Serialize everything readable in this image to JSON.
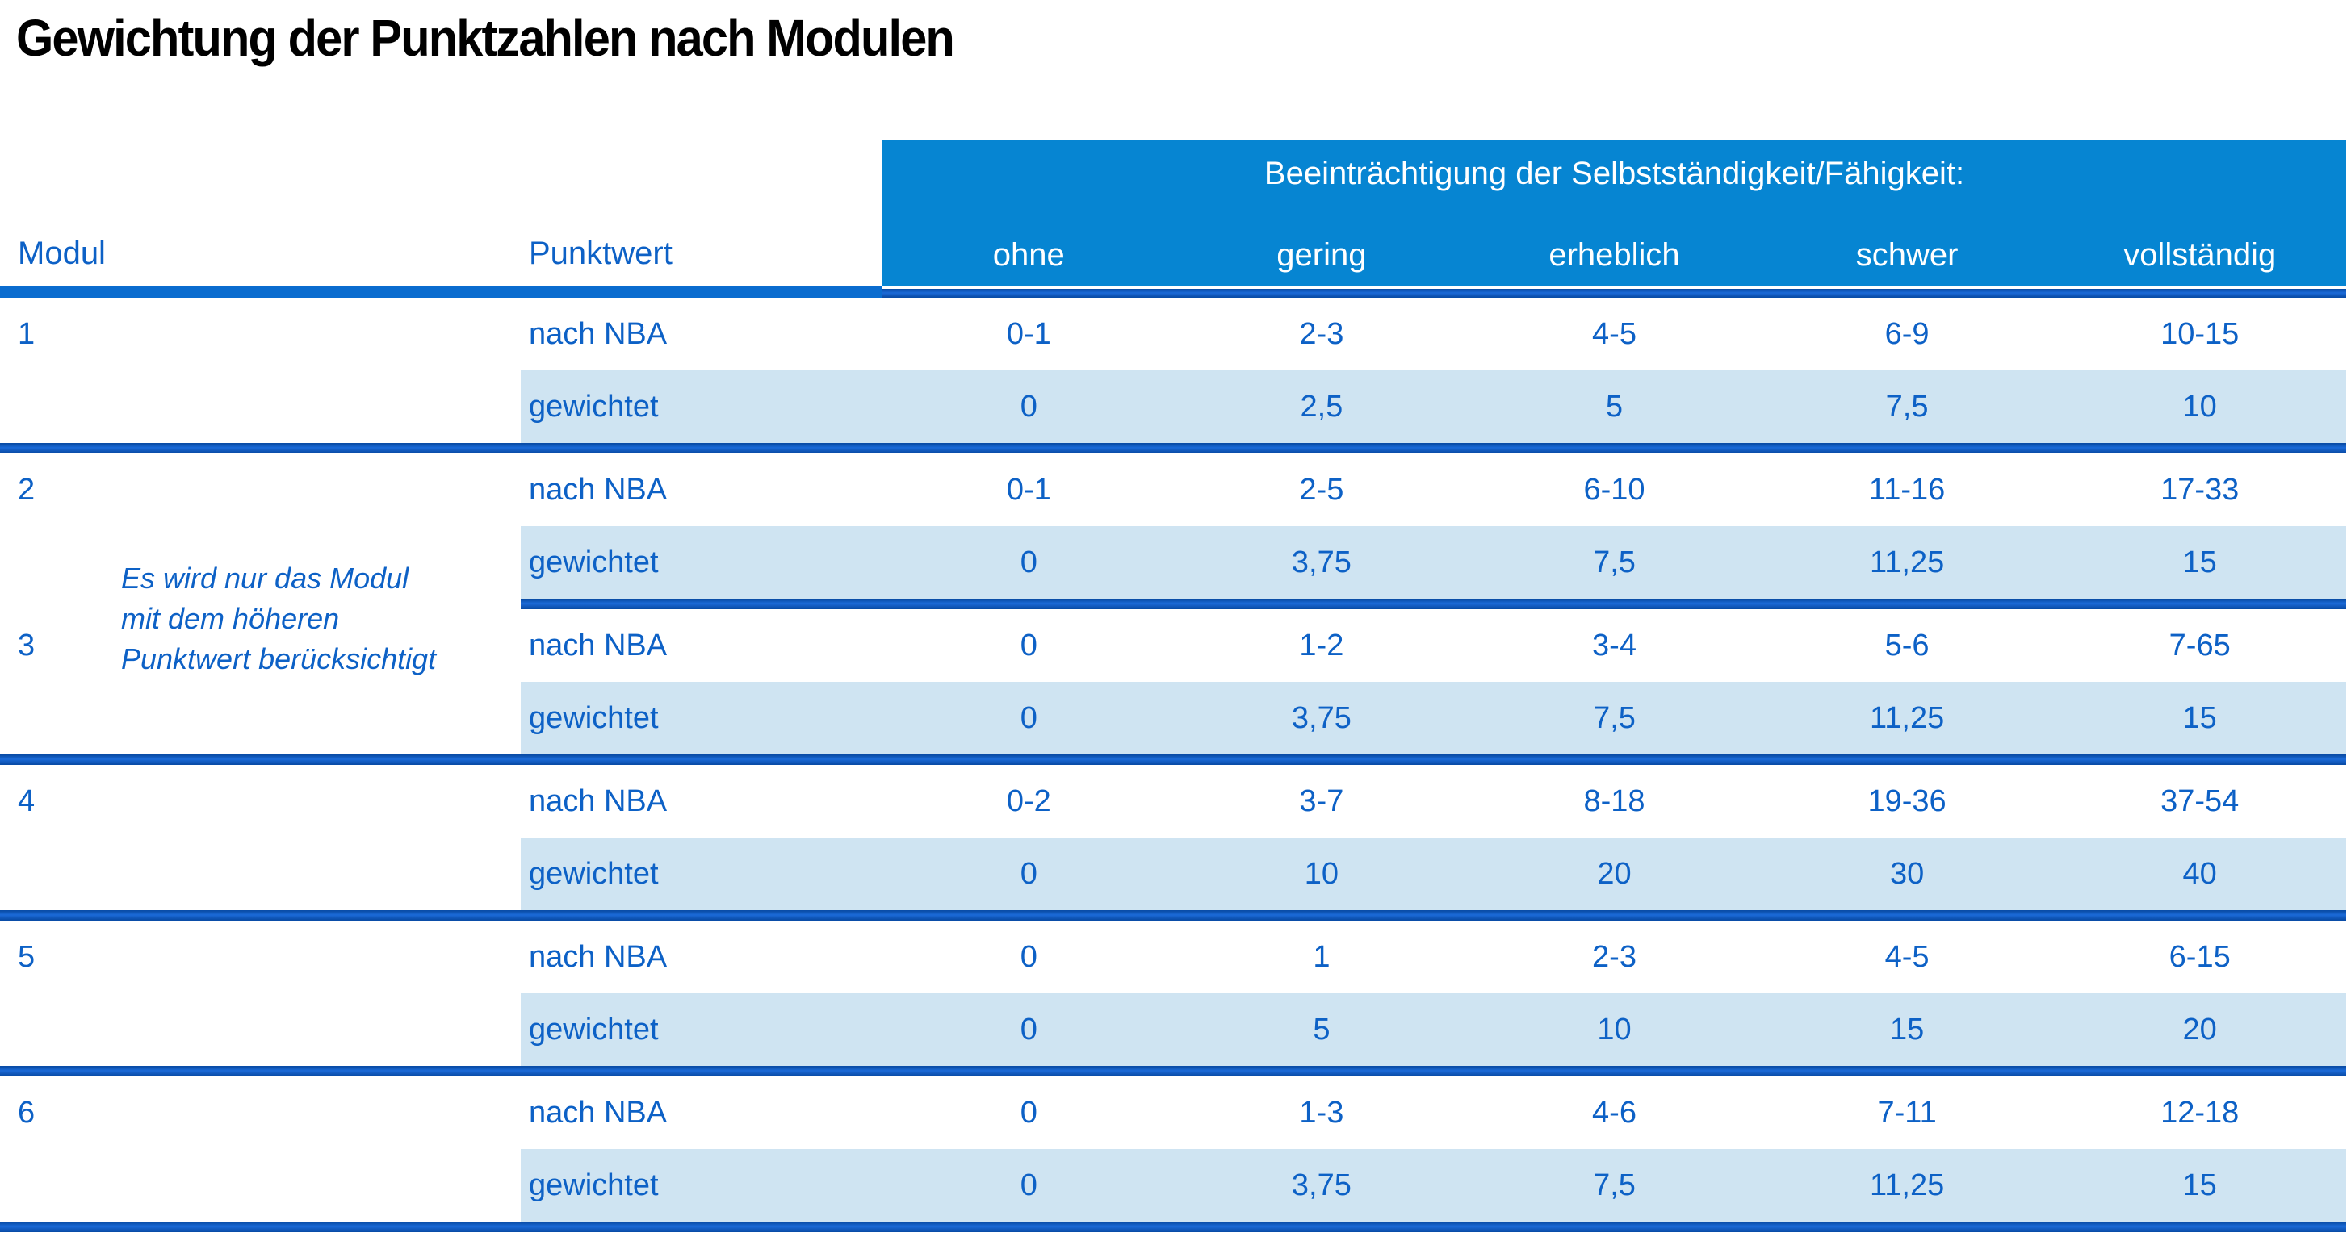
{
  "page": {
    "title": "Gewichtung der Punktzahlen nach Modulen"
  },
  "colors": {
    "header_azure": "#0685d2",
    "text_blue": "#0d61c6",
    "row_light_blue": "#cfe4f2",
    "separator_blue": "#1b6ad8",
    "separator_dark": "#0a4da8"
  },
  "table": {
    "modul_header": "Modul",
    "punktwert_header": "Punktwert",
    "group_header": "Beeinträchtigung der Selbstständigkeit/Fähigkeit:",
    "severity_labels": [
      "ohne",
      "gering",
      "erheblich",
      "schwer",
      "vollständig"
    ],
    "row_labels": {
      "nba": "nach NBA",
      "gewichtet": "gewichtet"
    },
    "note": {
      "line1": "Es wird nur das Modul",
      "line2": "mit dem höheren",
      "line3": "Punktwert berücksichtigt"
    },
    "modules": [
      {
        "number": "1",
        "nba": [
          "0-1",
          "2-3",
          "4-5",
          "6-9",
          "10-15"
        ],
        "gewichtet": [
          "0",
          "2,5",
          "5",
          "7,5",
          "10"
        ]
      },
      {
        "number": "2",
        "nba": [
          "0-1",
          "2-5",
          "6-10",
          "11-16",
          "17-33"
        ],
        "gewichtet": [
          "0",
          "3,75",
          "7,5",
          "11,25",
          "15"
        ]
      },
      {
        "number": "3",
        "nba": [
          "0",
          "1-2",
          "3-4",
          "5-6",
          "7-65"
        ],
        "gewichtet": [
          "0",
          "3,75",
          "7,5",
          "11,25",
          "15"
        ]
      },
      {
        "number": "4",
        "nba": [
          "0-2",
          "3-7",
          "8-18",
          "19-36",
          "37-54"
        ],
        "gewichtet": [
          "0",
          "10",
          "20",
          "30",
          "40"
        ]
      },
      {
        "number": "5",
        "nba": [
          "0",
          "1",
          "2-3",
          "4-5",
          "6-15"
        ],
        "gewichtet": [
          "0",
          "5",
          "10",
          "15",
          "20"
        ]
      },
      {
        "number": "6",
        "nba": [
          "0",
          "1-3",
          "4-6",
          "7-11",
          "12-18"
        ],
        "gewichtet": [
          "0",
          "3,75",
          "7,5",
          "11,25",
          "15"
        ]
      }
    ]
  }
}
